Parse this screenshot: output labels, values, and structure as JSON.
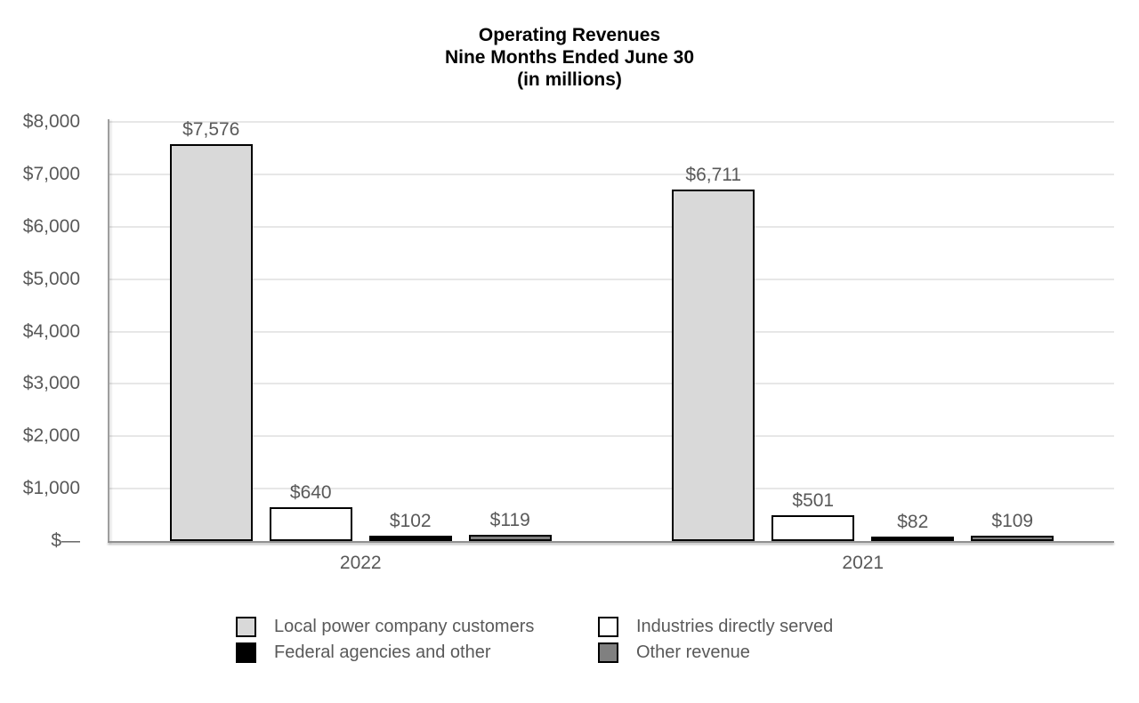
{
  "page": {
    "background": "#ffffff"
  },
  "chart_data": {
    "type": "bar",
    "title": "Operating Revenues",
    "subtitle": "Nine Months Ended June 30",
    "note": "(in millions)",
    "categories": [
      "2022",
      "2021"
    ],
    "series": [
      {
        "key": "local-power-company-customers",
        "name": "Local power company customers",
        "color": "#d9d9d9",
        "values": [
          7576,
          6711
        ],
        "labels": [
          "$7,576",
          "$6,711"
        ]
      },
      {
        "key": "industries-directly-served",
        "name": "Industries directly served",
        "color": "#ffffff",
        "values": [
          640,
          501
        ],
        "labels": [
          "$640",
          "$501"
        ]
      },
      {
        "key": "federal-agencies-and-other",
        "name": "Federal agencies and other",
        "color": "#000000",
        "values": [
          102,
          82
        ],
        "labels": [
          "$102",
          "$82"
        ]
      },
      {
        "key": "other-revenue",
        "name": "Other revenue",
        "color": "#808080",
        "values": [
          119,
          109
        ],
        "labels": [
          "$119",
          "$109"
        ]
      }
    ],
    "y_axis": {
      "min": 0,
      "max": 8000,
      "tick_interval": 1000,
      "ticks": [
        {
          "value": 0,
          "label": "$—"
        },
        {
          "value": 1000,
          "label": "$1,000"
        },
        {
          "value": 2000,
          "label": "$2,000"
        },
        {
          "value": 3000,
          "label": "$3,000"
        },
        {
          "value": 4000,
          "label": "$4,000"
        },
        {
          "value": 5000,
          "label": "$5,000"
        },
        {
          "value": 6000,
          "label": "$6,000"
        },
        {
          "value": 7000,
          "label": "$7,000"
        },
        {
          "value": 8000,
          "label": "$8,000"
        }
      ]
    },
    "grid": true,
    "legend_position": "bottom",
    "bar_border_color": "#000000",
    "colors": {
      "axis_line": "#9e9e9e",
      "gridline": "#e7e7e7",
      "tick_text": "#595959",
      "data_label_text": "#595959",
      "category_text": "#595959",
      "legend_text": "#595959",
      "title_text": "#000000"
    }
  }
}
